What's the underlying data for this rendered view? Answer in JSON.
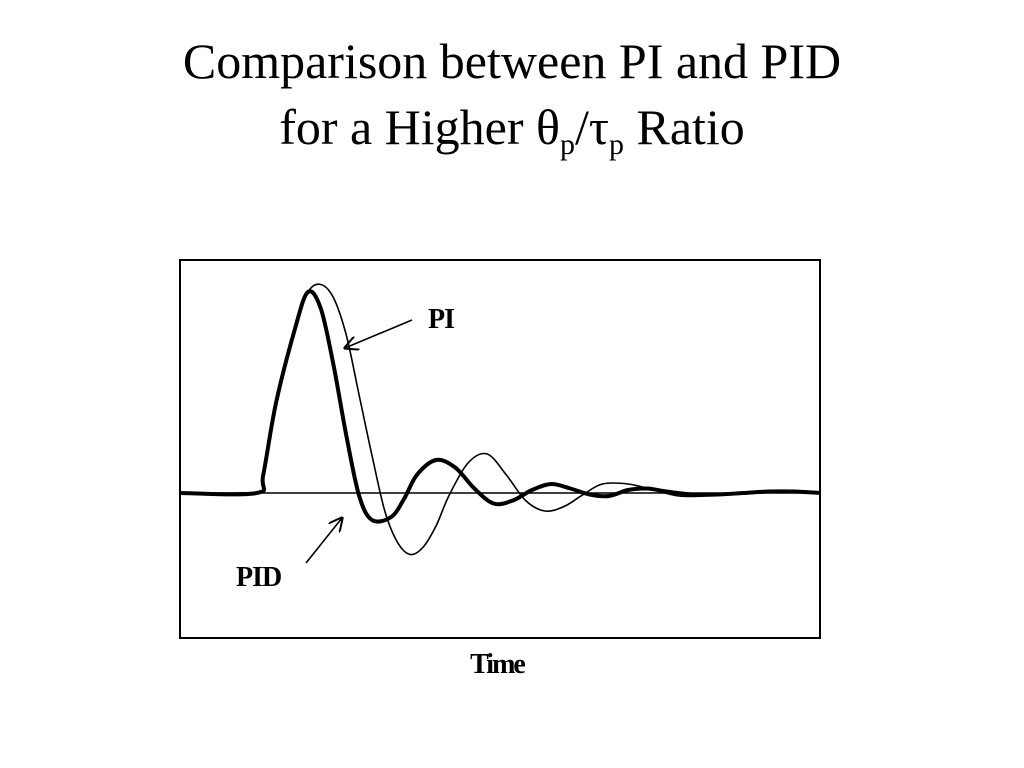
{
  "slide": {
    "title_line1": "Comparison between PI and PID",
    "title_line2_prefix": "for a Higher ",
    "theta": "θ",
    "sub_p1": "p",
    "slash": "/",
    "tau": "τ",
    "sub_p2": "p",
    "title_line2_suffix": " Ratio"
  },
  "chart_data": {
    "type": "line",
    "title": "",
    "xlabel": "Time",
    "ylabel": "",
    "xlim": [
      0,
      100
    ],
    "ylim": [
      -1.0,
      1.5
    ],
    "grid": false,
    "reference_line": 0,
    "series": [
      {
        "name": "PID",
        "color": "#000000",
        "line_style": "thick",
        "x": [
          0,
          12,
          13,
          15,
          18,
          20,
          22,
          24,
          26,
          28,
          30,
          33,
          35,
          37,
          40,
          43,
          46,
          49,
          52,
          55,
          58,
          61,
          64,
          67,
          70,
          73,
          76,
          80,
          84,
          88,
          92,
          96,
          100
        ],
        "y": [
          0,
          0,
          0.12,
          0.6,
          1.1,
          1.34,
          1.23,
          0.85,
          0.38,
          -0.02,
          -0.18,
          -0.16,
          -0.04,
          0.12,
          0.22,
          0.17,
          0.03,
          -0.07,
          -0.05,
          0.02,
          0.06,
          0.03,
          -0.01,
          -0.02,
          0.02,
          0.03,
          0.01,
          -0.01,
          -0.01,
          0.0,
          0.01,
          0.01,
          0.0
        ]
      },
      {
        "name": "PI",
        "color": "#000000",
        "line_style": "thin",
        "x": [
          0,
          12,
          13,
          15,
          18,
          20,
          22,
          24,
          26,
          28,
          30,
          32,
          34,
          36,
          38,
          40,
          42,
          45,
          48,
          51,
          54,
          57,
          60,
          63,
          66,
          70,
          74,
          78,
          82,
          86,
          90,
          95,
          100
        ],
        "y": [
          0,
          0,
          0.12,
          0.6,
          1.1,
          1.34,
          1.39,
          1.3,
          1.05,
          0.65,
          0.25,
          -0.12,
          -0.33,
          -0.41,
          -0.36,
          -0.22,
          -0.02,
          0.2,
          0.26,
          0.12,
          -0.05,
          -0.12,
          -0.09,
          -0.01,
          0.06,
          0.06,
          0.02,
          -0.02,
          -0.02,
          0.0,
          0.01,
          0.01,
          0.0
        ]
      }
    ],
    "annotations": [
      {
        "text": "PI",
        "points_to_series": "PI"
      },
      {
        "text": "PID",
        "points_to_series": "PID"
      }
    ]
  }
}
